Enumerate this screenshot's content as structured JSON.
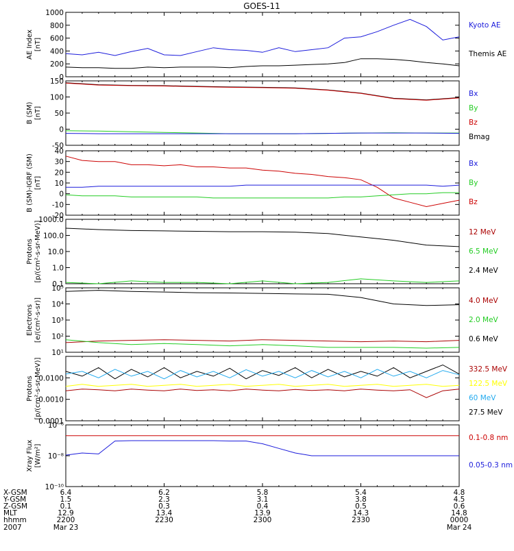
{
  "title": "GOES-11",
  "colors": {
    "axis": "#000000",
    "blue": "#1a1adb",
    "black": "#000000",
    "red": "#cc0000",
    "green": "#22cc22",
    "yellow": "#ffff00",
    "cyan": "#22aaee",
    "darkred": "#aa0000"
  },
  "panels": [
    {
      "id": "ae",
      "ylabel": "AE Index\n[nT]",
      "yscale": "linear",
      "ylim": [
        0,
        1000
      ],
      "ticks": [
        "0",
        "200",
        "400",
        "600",
        "800",
        "1000"
      ],
      "tick_values": [
        0,
        200,
        400,
        600,
        800,
        1000
      ],
      "legend": [
        {
          "label": "Kyoto AE",
          "color": "#1a1adb"
        },
        {
          "label": "Themis AE",
          "color": "#000000"
        }
      ]
    },
    {
      "id": "bsm",
      "ylabel": "B (SM)\n[nT]",
      "yscale": "linear",
      "ylim": [
        -50,
        150
      ],
      "ticks": [
        "-50",
        "0",
        "50",
        "100",
        "150"
      ],
      "tick_values": [
        -50,
        0,
        50,
        100,
        150
      ],
      "legend": [
        {
          "label": "Bx",
          "color": "#1a1adb"
        },
        {
          "label": "By",
          "color": "#22cc22"
        },
        {
          "label": "Bz",
          "color": "#cc0000"
        },
        {
          "label": "Bmag",
          "color": "#000000"
        }
      ]
    },
    {
      "id": "bigrf",
      "ylabel": "B (SM)-IGRF (SM)\n[nT]",
      "yscale": "linear",
      "ylim": [
        -20,
        40
      ],
      "ticks": [
        "-20",
        "-10",
        "0",
        "10",
        "20",
        "30",
        "40"
      ],
      "tick_values": [
        -20,
        -10,
        0,
        10,
        20,
        30,
        40
      ],
      "legend": [
        {
          "label": "Bx",
          "color": "#1a1adb"
        },
        {
          "label": "By",
          "color": "#22cc22"
        },
        {
          "label": "Bz",
          "color": "#cc0000"
        }
      ]
    },
    {
      "id": "protons_hi",
      "ylabel": "Protons\n[p/(cm²-s-sr-MeV)]",
      "yscale": "log",
      "ylim": [
        0.1,
        1000
      ],
      "ticks": [
        "0.1",
        "1.0",
        "10.0",
        "100.0",
        "1000.0"
      ],
      "tick_values": [
        0.1,
        1,
        10,
        100,
        1000
      ],
      "legend": [
        {
          "label": "12 MeV",
          "color": "#aa0000"
        },
        {
          "label": "6.5 MeV",
          "color": "#22cc22"
        },
        {
          "label": "2.4 MeV",
          "color": "#000000"
        }
      ]
    },
    {
      "id": "electrons",
      "ylabel": "Electrons\n[e/(cm²-s-sr)]",
      "yscale": "log",
      "ylim": [
        10,
        100000
      ],
      "ticks": [
        "10¹",
        "10²",
        "10³",
        "10⁴",
        "10⁵"
      ],
      "tick_values": [
        10,
        100,
        1000,
        10000,
        100000
      ],
      "legend": [
        {
          "label": "4.0 MeV",
          "color": "#aa0000"
        },
        {
          "label": "2.0 MeV",
          "color": "#22cc22"
        },
        {
          "label": "0.6 MeV",
          "color": "#000000"
        }
      ]
    },
    {
      "id": "protons_lo",
      "ylabel": "Protons\n[p/(cm²-s-sr-MeV)]",
      "yscale": "log",
      "ylim": [
        0.0001,
        0.1
      ],
      "ticks": [
        "0.0001",
        "0.0010",
        "0.0100"
      ],
      "tick_values": [
        0.0001,
        0.001,
        0.01
      ],
      "legend": [
        {
          "label": "332.5 MeV",
          "color": "#aa0000"
        },
        {
          "label": "122.5 MeV",
          "color": "#ffff00"
        },
        {
          "label": "60 MeV",
          "color": "#22aaee"
        },
        {
          "label": "27.5 MeV",
          "color": "#000000"
        }
      ]
    },
    {
      "id": "xray",
      "ylabel": "Xray Flux\n[W/m²]",
      "yscale": "log",
      "ylim": [
        1e-10,
        1e-06
      ],
      "ticks": [
        "10⁻¹⁰",
        "10⁻⁸",
        "10⁻⁶"
      ],
      "tick_values": [
        1e-10,
        1e-08,
        1e-06
      ],
      "legend": [
        {
          "label": "0.1-0.8 nm",
          "color": "#cc0000"
        },
        {
          "label": "0.05-0.3 nm",
          "color": "#1a1adb"
        }
      ]
    }
  ],
  "footer": {
    "row_labels": [
      "X-GSM",
      "Y-GSM",
      "Z-GSM",
      "MLT",
      "hhmm",
      "2007"
    ],
    "columns": [
      [
        "6.4",
        "1.5",
        "0.1",
        "12.9",
        "2200",
        "Mar 23"
      ],
      [
        "6.2",
        "2.3",
        "0.3",
        "13.4",
        "2230",
        ""
      ],
      [
        "5.8",
        "3.1",
        "0.4",
        "13.9",
        "2300",
        ""
      ],
      [
        "5.4",
        "3.8",
        "0.5",
        "14.3",
        "2330",
        ""
      ],
      [
        "4.8",
        "4.5",
        "0.6",
        "14.8",
        "0000",
        "Mar 24"
      ]
    ]
  },
  "chart_data": [
    {
      "type": "line",
      "x": [
        0,
        5,
        10,
        15,
        20,
        25,
        30,
        35,
        40,
        45,
        50,
        55,
        60,
        65,
        70,
        75,
        80,
        85,
        90,
        95,
        100,
        105,
        110,
        115,
        120
      ],
      "series": [
        {
          "name": "Kyoto AE",
          "values": [
            360,
            340,
            380,
            330,
            390,
            440,
            340,
            330,
            390,
            450,
            420,
            410,
            380,
            450,
            390,
            420,
            450,
            600,
            620,
            700,
            800,
            890,
            780,
            570,
            620
          ]
        },
        {
          "name": "Themis AE",
          "values": [
            150,
            140,
            140,
            130,
            130,
            150,
            140,
            150,
            150,
            150,
            140,
            160,
            170,
            170,
            180,
            190,
            200,
            220,
            280,
            280,
            270,
            250,
            220,
            200,
            170
          ]
        }
      ],
      "ylim": [
        0,
        1000
      ],
      "ylabel": "AE Index [nT]"
    },
    {
      "type": "line",
      "x": [
        0,
        10,
        20,
        30,
        40,
        50,
        60,
        70,
        80,
        90,
        100,
        110,
        120
      ],
      "series": [
        {
          "name": "Bmag",
          "values": [
            144,
            138,
            136,
            135,
            133,
            131,
            130,
            128,
            122,
            112,
            96,
            91,
            98
          ]
        },
        {
          "name": "Bz",
          "values": [
            143,
            137,
            135,
            134,
            132,
            130,
            129,
            127,
            121,
            111,
            95,
            90,
            97
          ]
        },
        {
          "name": "By",
          "values": [
            -5,
            -6,
            -8,
            -10,
            -12,
            -14,
            -14,
            -14,
            -13,
            -12,
            -11,
            -12,
            -12
          ]
        },
        {
          "name": "Bx",
          "values": [
            -13,
            -14,
            -14,
            -14,
            -14,
            -14,
            -14,
            -14,
            -13,
            -12,
            -12,
            -12,
            -13
          ]
        }
      ],
      "ylim": [
        -50,
        150
      ],
      "ylabel": "B (SM) [nT]"
    },
    {
      "type": "line",
      "x": [
        0,
        5,
        10,
        15,
        20,
        25,
        30,
        35,
        40,
        45,
        50,
        55,
        60,
        65,
        70,
        75,
        80,
        85,
        90,
        95,
        100,
        105,
        110,
        115,
        120
      ],
      "series": [
        {
          "name": "Bz",
          "values": [
            35,
            31,
            30,
            30,
            27,
            27,
            26,
            27,
            25,
            25,
            24,
            24,
            22,
            21,
            19,
            18,
            16,
            15,
            13,
            6,
            -4,
            -8,
            -12,
            -9,
            -6
          ]
        },
        {
          "name": "Bx",
          "values": [
            6,
            6,
            7,
            7,
            7,
            7,
            7,
            7,
            7,
            7,
            7,
            8,
            8,
            8,
            8,
            8,
            8,
            8,
            8,
            8,
            8,
            8,
            8,
            7,
            8
          ]
        },
        {
          "name": "By",
          "values": [
            -1,
            -2,
            -2,
            -2,
            -3,
            -3,
            -3,
            -3,
            -3,
            -4,
            -4,
            -4,
            -4,
            -4,
            -4,
            -4,
            -4,
            -3,
            -3,
            -2,
            -1,
            0,
            0,
            1,
            1
          ]
        }
      ],
      "ylim": [
        -20,
        40
      ],
      "ylabel": "B (SM)-IGRF (SM) [nT]"
    },
    {
      "type": "line",
      "x": [
        0,
        10,
        20,
        30,
        40,
        50,
        60,
        70,
        80,
        90,
        100,
        110,
        120
      ],
      "series": [
        {
          "name": "2.4 MeV",
          "values": [
            280,
            230,
            200,
            190,
            180,
            170,
            170,
            160,
            130,
            80,
            50,
            25,
            20
          ]
        },
        {
          "name": "6.5 MeV",
          "values": [
            0.12,
            0.1,
            0.15,
            0.12,
            0.12,
            0.1,
            0.15,
            0.1,
            0.12,
            0.2,
            0.15,
            0.12,
            0.15
          ]
        }
      ],
      "ylim": [
        0.1,
        1000
      ],
      "ylabel": "Protons [p/(cm²-s-sr-MeV)]"
    },
    {
      "type": "line",
      "x": [
        0,
        10,
        20,
        30,
        40,
        50,
        60,
        70,
        80,
        90,
        100,
        110,
        120
      ],
      "series": [
        {
          "name": "0.6 MeV",
          "values": [
            60000,
            70000,
            60000,
            55000,
            50000,
            48000,
            45000,
            42000,
            40000,
            25000,
            10000,
            8000,
            9000
          ]
        },
        {
          "name": "4.0 MeV",
          "values": [
            40,
            50,
            55,
            60,
            55,
            50,
            60,
            55,
            50,
            45,
            50,
            45,
            55
          ]
        },
        {
          "name": "2.0 MeV",
          "values": [
            60,
            40,
            30,
            35,
            30,
            25,
            30,
            25,
            20,
            20,
            20,
            18,
            20
          ]
        }
      ],
      "ylim": [
        10,
        100000
      ],
      "ylabel": "Electrons [e/(cm²-s-sr)]"
    },
    {
      "type": "line",
      "x": [
        0,
        5,
        10,
        15,
        20,
        25,
        30,
        35,
        40,
        45,
        50,
        55,
        60,
        65,
        70,
        75,
        80,
        85,
        90,
        95,
        100,
        105,
        110,
        115,
        120
      ],
      "series": [
        {
          "name": "27.5 MeV",
          "values": [
            0.02,
            0.012,
            0.03,
            0.009,
            0.025,
            0.011,
            0.03,
            0.01,
            0.02,
            0.012,
            0.028,
            0.009,
            0.022,
            0.013,
            0.03,
            0.01,
            0.025,
            0.011,
            0.02,
            0.012,
            0.03,
            0.01,
            0.02,
            0.04,
            0.015
          ]
        },
        {
          "name": "60 MeV",
          "values": [
            0.015,
            0.02,
            0.01,
            0.025,
            0.012,
            0.02,
            0.009,
            0.022,
            0.011,
            0.02,
            0.01,
            0.024,
            0.012,
            0.02,
            0.01,
            0.022,
            0.011,
            0.02,
            0.01,
            0.025,
            0.012,
            0.02,
            0.01,
            0.022,
            0.014
          ]
        },
        {
          "name": "122.5 MeV",
          "values": [
            0.004,
            0.005,
            0.004,
            0.0045,
            0.005,
            0.004,
            0.0045,
            0.005,
            0.004,
            0.0045,
            0.005,
            0.004,
            0.0045,
            0.005,
            0.004,
            0.0045,
            0.005,
            0.004,
            0.0045,
            0.005,
            0.004,
            0.0045,
            0.005,
            0.004,
            0.0045
          ]
        },
        {
          "name": "332.5 MeV",
          "values": [
            0.0025,
            0.003,
            0.0028,
            0.0025,
            0.003,
            0.0027,
            0.0025,
            0.003,
            0.0026,
            0.0028,
            0.0025,
            0.003,
            0.0027,
            0.0025,
            0.0029,
            0.0026,
            0.0028,
            0.0025,
            0.003,
            0.0027,
            0.0025,
            0.0028,
            0.0012,
            0.0025,
            0.003
          ]
        }
      ],
      "ylim": [
        0.0001,
        0.1
      ],
      "ylabel": "Protons [p/(cm²-s-sr-MeV)]"
    },
    {
      "type": "line",
      "x": [
        0,
        5,
        10,
        15,
        20,
        25,
        30,
        35,
        40,
        45,
        50,
        55,
        60,
        65,
        70,
        75,
        80,
        85,
        90,
        95,
        100,
        105,
        110,
        115,
        120
      ],
      "series": [
        {
          "name": "0.1-0.8 nm",
          "values": [
            2e-07,
            2e-07,
            2e-07,
            2e-07,
            2e-07,
            2e-07,
            2e-07,
            2e-07,
            2e-07,
            2e-07,
            2e-07,
            2e-07,
            2e-07,
            2e-07,
            2e-07,
            2e-07,
            2e-07,
            2e-07,
            2e-07,
            2e-07,
            2e-07,
            2e-07,
            2e-07,
            2e-07,
            2e-07
          ]
        },
        {
          "name": "0.05-0.3 nm",
          "values": [
            1.1e-08,
            1.5e-08,
            1.3e-08,
            9e-08,
            9.5e-08,
            9.5e-08,
            9.5e-08,
            9.5e-08,
            9.5e-08,
            9.5e-08,
            9e-08,
            9e-08,
            6e-08,
            3e-08,
            1.5e-08,
            1e-08,
            1e-08,
            1e-08,
            1e-08,
            1e-08,
            1e-08,
            1e-08,
            1e-08,
            1e-08,
            1e-08
          ]
        }
      ],
      "ylim": [
        1e-10,
        1e-06
      ],
      "ylabel": "Xray Flux [W/m²]"
    }
  ]
}
